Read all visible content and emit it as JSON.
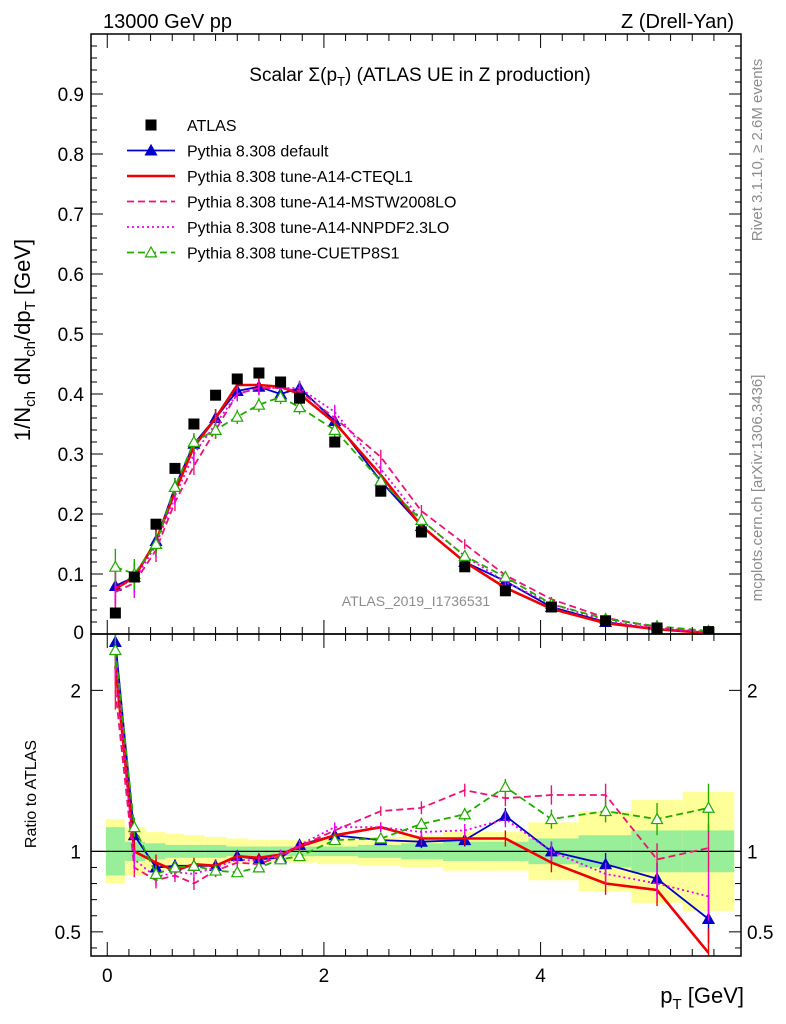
{
  "header": {
    "left": "13000 GeV pp",
    "right": "Z (Drell-Yan)",
    "side_top": "Rivet 3.1.10, ≥ 2.6M events",
    "side_bottom": "mcplots.cern.ch [arXiv:1306.3436]"
  },
  "chart_data": [
    {
      "type": "line",
      "title": "Scalar Σ(pT) (ATLAS UE in Z production)",
      "watermark": "ATLAS_2019_I1736531",
      "xlabel": "pT [GeV]",
      "ylabel": "1/Nch dNch/dpT [GeV]",
      "xlim": [
        -0.15,
        5.85
      ],
      "ylim": [
        0,
        1.0
      ],
      "yticks": [
        "0.1",
        "0.2",
        "0.3",
        "0.4",
        "0.5",
        "0.6",
        "0.7",
        "0.8",
        "0.9"
      ],
      "ytick_bottom_label": "0",
      "xticks": [
        "0",
        "2",
        "4"
      ],
      "legend_position": "top-left",
      "x": [
        0.075,
        0.25,
        0.45,
        0.625,
        0.8,
        1.0,
        1.2,
        1.4,
        1.6,
        1.775,
        2.1,
        2.525,
        2.9,
        3.3,
        3.675,
        4.1,
        4.6,
        5.075,
        5.55
      ],
      "data": {
        "name": "ATLAS",
        "color": "#000000",
        "values": [
          0.035,
          0.095,
          0.183,
          0.276,
          0.35,
          0.398,
          0.425,
          0.435,
          0.42,
          0.393,
          0.32,
          0.238,
          0.17,
          0.112,
          0.072,
          0.045,
          0.022,
          0.01,
          0.004
        ]
      },
      "series": [
        {
          "name": "Pythia 8.308 default",
          "color": "#0000cc",
          "style": "solid",
          "marker": "triangle-filled",
          "values": [
            0.08,
            0.095,
            0.155,
            0.245,
            0.317,
            0.36,
            0.405,
            0.412,
            0.4,
            0.41,
            0.355,
            0.255,
            0.18,
            0.12,
            0.088,
            0.045,
            0.02,
            0.008,
            0.002
          ]
        },
        {
          "name": "Pythia 8.308 tune-A14-CTEQL1",
          "color": "#ee0000",
          "style": "solid",
          "marker": "none",
          "values": [
            0.075,
            0.095,
            0.155,
            0.237,
            0.312,
            0.36,
            0.415,
            0.415,
            0.412,
            0.4,
            0.352,
            0.265,
            0.18,
            0.12,
            0.077,
            0.042,
            0.018,
            0.008,
            0.0015
          ]
        },
        {
          "name": "Pythia 8.308 tune-A14-MSTW2008LO",
          "color": "#ee1177",
          "style": "dashed",
          "marker": "none",
          "values": [
            0.07,
            0.085,
            0.14,
            0.22,
            0.28,
            0.34,
            0.4,
            0.41,
            0.41,
            0.405,
            0.36,
            0.295,
            0.205,
            0.15,
            0.098,
            0.058,
            0.027,
            0.011,
            0.003
          ]
        },
        {
          "name": "Pythia 8.308 tune-A14-NNPDF2.3LO",
          "color": "#ee00ee",
          "style": "dotted",
          "marker": "none",
          "values": [
            0.078,
            0.09,
            0.148,
            0.23,
            0.3,
            0.35,
            0.4,
            0.41,
            0.41,
            0.41,
            0.37,
            0.275,
            0.19,
            0.13,
            0.087,
            0.05,
            0.022,
            0.009,
            0.003
          ]
        },
        {
          "name": "Pythia 8.308 tune-CUETP8S1",
          "color": "#22aa00",
          "style": "dashed",
          "marker": "triangle-open",
          "values": [
            0.112,
            0.1,
            0.15,
            0.245,
            0.32,
            0.34,
            0.362,
            0.382,
            0.395,
            0.378,
            0.34,
            0.255,
            0.19,
            0.13,
            0.095,
            0.05,
            0.025,
            0.013,
            0.005
          ]
        }
      ]
    },
    {
      "type": "line",
      "ylabel": "Ratio to ATLAS",
      "xlim": [
        -0.15,
        5.85
      ],
      "ylim": [
        0.35,
        2.35
      ],
      "yticks": [
        "0.5",
        "1",
        "2"
      ],
      "x": [
        0.075,
        0.25,
        0.45,
        0.625,
        0.8,
        1.0,
        1.2,
        1.4,
        1.6,
        1.775,
        2.1,
        2.525,
        2.9,
        3.3,
        3.675,
        4.1,
        4.6,
        5.075,
        5.55
      ],
      "band_stat_halfwidth": [
        0.15,
        0.06,
        0.05,
        0.04,
        0.04,
        0.04,
        0.03,
        0.03,
        0.03,
        0.03,
        0.03,
        0.04,
        0.05,
        0.06,
        0.06,
        0.08,
        0.1,
        0.13,
        0.13
      ],
      "band_total_halfwidth": [
        0.2,
        0.15,
        0.12,
        0.11,
        0.1,
        0.09,
        0.08,
        0.07,
        0.07,
        0.07,
        0.08,
        0.09,
        0.1,
        0.12,
        0.12,
        0.18,
        0.25,
        0.32,
        0.37
      ],
      "series": [
        {
          "name": "Pythia 8.308 default",
          "color": "#0000cc",
          "style": "solid",
          "marker": "triangle-filled",
          "values": [
            2.3,
            1.1,
            0.9,
            0.91,
            0.91,
            0.91,
            0.97,
            0.95,
            0.96,
            1.04,
            1.1,
            1.07,
            1.06,
            1.07,
            1.22,
            1.0,
            0.92,
            0.83,
            0.58
          ]
        },
        {
          "name": "Pythia 8.308 tune-A14-CTEQL1",
          "color": "#ee0000",
          "style": "solid",
          "marker": "none",
          "values": [
            2.15,
            1.0,
            0.93,
            0.88,
            0.92,
            0.91,
            0.97,
            0.96,
            0.98,
            1.03,
            1.1,
            1.15,
            1.08,
            1.08,
            1.08,
            0.93,
            0.8,
            0.76,
            0.37
          ]
        },
        {
          "name": "Pythia 8.308 tune-A14-MSTW2008LO",
          "color": "#ee1177",
          "style": "dashed",
          "marker": "none",
          "values": [
            2.0,
            0.9,
            0.82,
            0.85,
            0.8,
            0.88,
            0.93,
            0.92,
            0.97,
            1.03,
            1.13,
            1.25,
            1.27,
            1.38,
            1.33,
            1.35,
            1.35,
            0.95,
            1.02
          ]
        },
        {
          "name": "Pythia 8.308 tune-A14-NNPDF2.3LO",
          "color": "#ee00ee",
          "style": "dotted",
          "marker": "none",
          "values": [
            2.2,
            0.95,
            0.84,
            0.87,
            0.86,
            0.9,
            0.95,
            0.94,
            0.98,
            1.04,
            1.15,
            1.15,
            1.12,
            1.13,
            1.2,
            1.0,
            0.86,
            0.8,
            0.72
          ]
        },
        {
          "name": "Pythia 8.308 tune-CUETP8S1",
          "color": "#22aa00",
          "style": "dashed",
          "marker": "triangle-open",
          "values": [
            2.25,
            1.15,
            0.86,
            0.9,
            0.91,
            0.88,
            0.87,
            0.9,
            0.95,
            0.97,
            1.07,
            1.08,
            1.17,
            1.23,
            1.4,
            1.2,
            1.25,
            1.2,
            1.27
          ]
        }
      ]
    }
  ]
}
